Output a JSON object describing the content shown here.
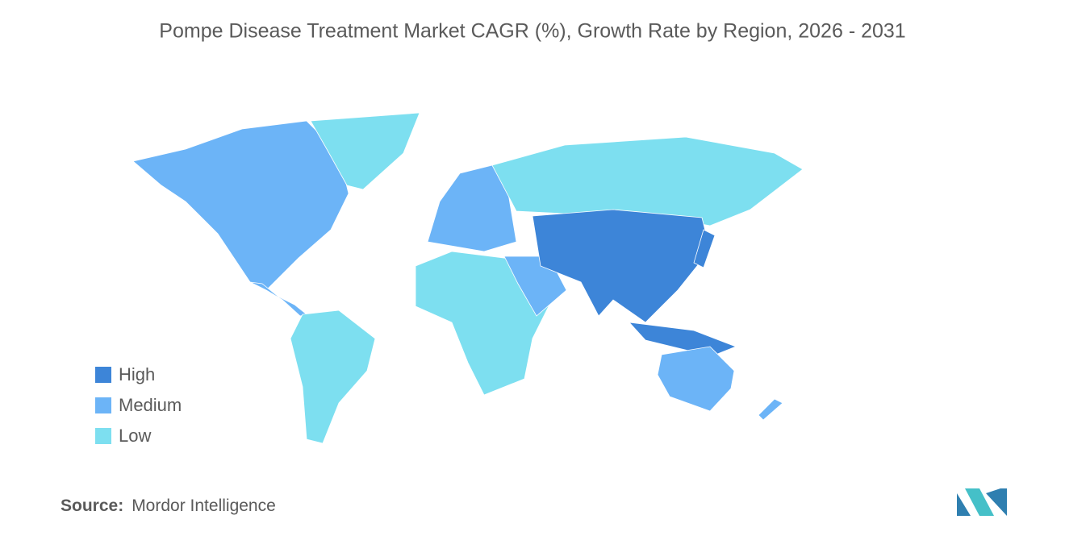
{
  "header": {
    "title": "Pompe Disease Treatment Market CAGR (%), Growth Rate by Region, 2026 - 2031"
  },
  "legend": {
    "items": [
      {
        "label": "High",
        "color": "#3d85d8"
      },
      {
        "label": "Medium",
        "color": "#6cb4f7"
      },
      {
        "label": "Low",
        "color": "#7ddff0"
      }
    ]
  },
  "footer": {
    "source_label": "Source:",
    "source": "Mordor Intelligence"
  }
}
